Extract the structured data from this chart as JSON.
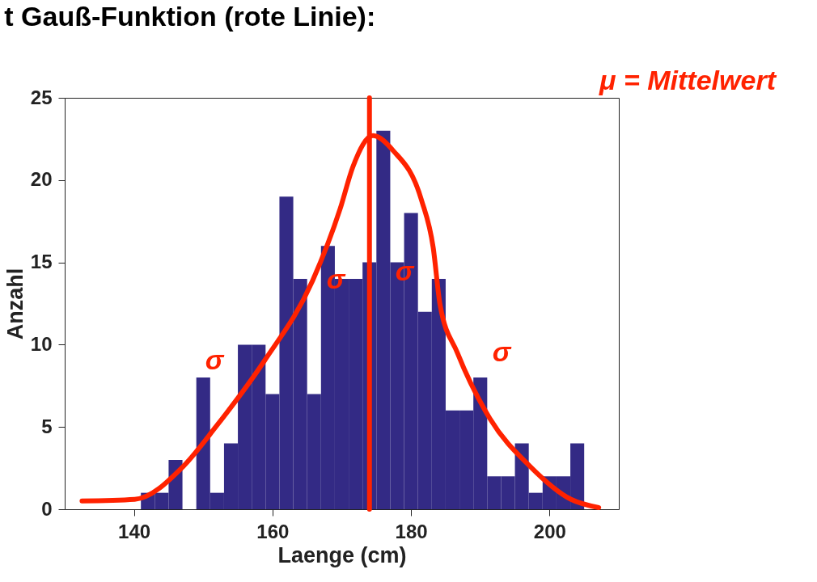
{
  "chart_data": {
    "type": "histogram",
    "title": "t Gauß-Funktion (rote Linie):",
    "xlabel": "Laenge (cm)",
    "ylabel": "Anzahl",
    "bins": [
      141,
      143,
      145,
      147,
      149,
      151,
      153,
      155,
      157,
      159,
      161,
      163,
      165,
      167,
      169,
      171,
      173,
      175,
      177,
      179,
      181,
      183,
      185,
      187,
      189,
      191,
      193,
      195,
      197,
      199,
      201,
      203,
      205
    ],
    "values": [
      1,
      1,
      3,
      0,
      8,
      1,
      4,
      10,
      10,
      7,
      19,
      14,
      7,
      16,
      14,
      14,
      15,
      23,
      15,
      18,
      12,
      14,
      6,
      6,
      8,
      2,
      2,
      4,
      1,
      2,
      2,
      4
    ],
    "color": "#332a85",
    "series": [
      {
        "type": "line",
        "color": "#ff2200",
        "x": [
          132.5,
          140.1,
          147.1,
          151.8,
          158.8,
          165.8,
          169.8,
          171.6,
          174.5,
          177.4,
          181.5,
          183.2,
          184.2,
          186.7,
          191.4,
          197.2,
          203.1,
          207.1
        ],
        "values": [
          0.5,
          0.6,
          2.6,
          5,
          9,
          13.9,
          18.3,
          20.8,
          22.7,
          21.8,
          18.8,
          15.9,
          12.4,
          9.5,
          5.5,
          2.6,
          0.6,
          0.1
        ]
      }
    ],
    "ref_lines": [
      {
        "axis": "x",
        "value": 174,
        "color": "#ff2200"
      }
    ],
    "annotations": [
      "μ = Mittelwert",
      "σ",
      "σ",
      "σ",
      "σ"
    ],
    "xlim": [
      130,
      210
    ],
    "ylim": [
      0,
      25
    ],
    "xticks": [
      140,
      160,
      180,
      200
    ],
    "yticks": [
      0,
      5,
      10,
      15,
      20,
      25
    ],
    "grid": false
  }
}
